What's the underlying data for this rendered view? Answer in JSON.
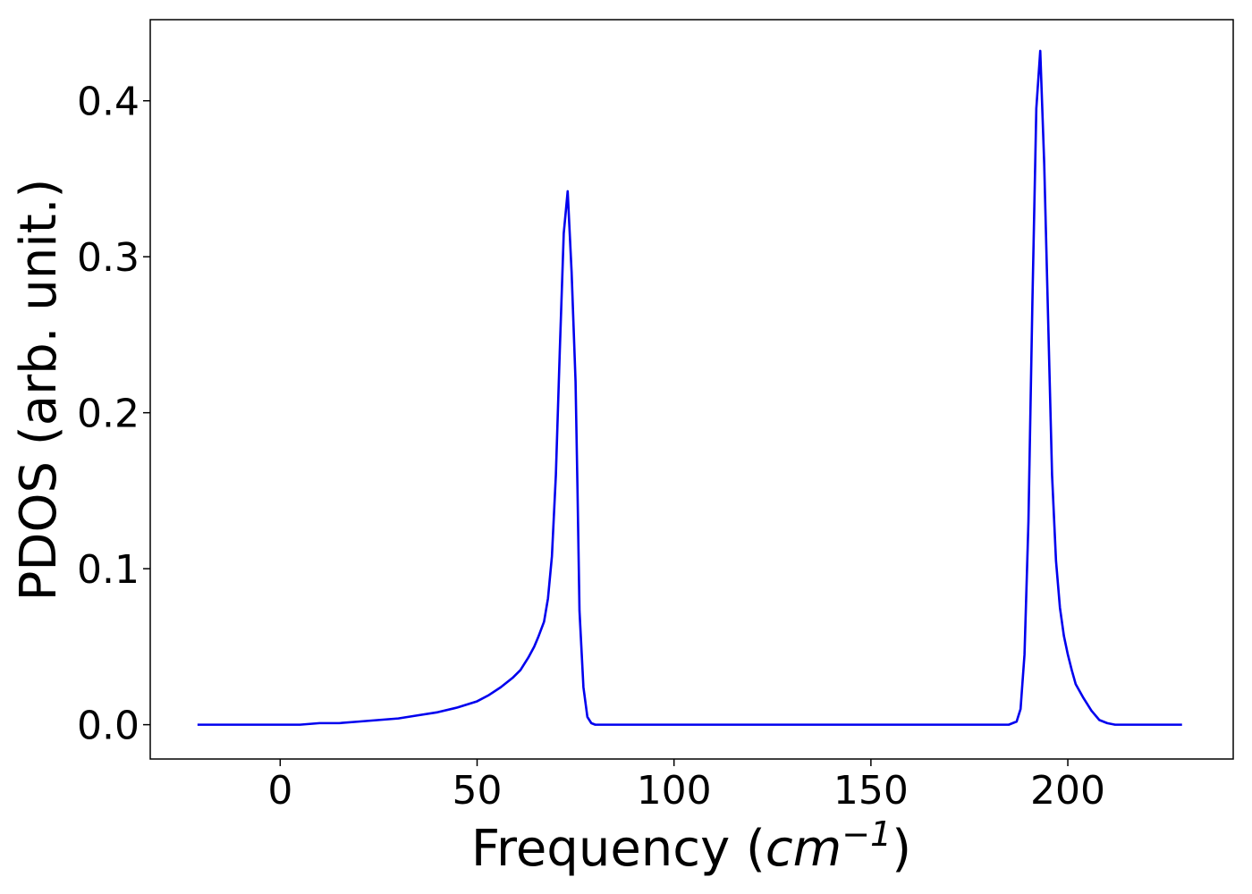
{
  "chart_data": {
    "type": "line",
    "title": "",
    "xlabel_prefix": "Frequency (",
    "xlabel_unit": "cm",
    "xlabel_exp": "−1",
    "xlabel_suffix": ")",
    "ylabel": "PDOS (arb. unit.)",
    "xlim": [
      -33,
      242
    ],
    "ylim": [
      -0.022,
      0.452
    ],
    "xticks": [
      0,
      50,
      100,
      150,
      200
    ],
    "xtick_labels": [
      "0",
      "50",
      "100",
      "150",
      "200"
    ],
    "yticks": [
      0.0,
      0.1,
      0.2,
      0.3,
      0.4
    ],
    "ytick_labels": [
      "0.0",
      "0.1",
      "0.2",
      "0.3",
      "0.4"
    ],
    "grid": false,
    "line_color": "#0000ee",
    "series": [
      {
        "x": [
          -21,
          -10,
          0,
          5,
          10,
          15,
          20,
          25,
          30,
          35,
          40,
          45,
          50,
          53,
          56,
          59,
          61,
          63,
          64.5,
          65.5,
          67,
          68,
          69,
          70,
          71,
          72,
          73,
          74,
          75,
          75.5,
          76,
          77,
          78,
          79,
          80,
          81,
          82,
          83,
          85,
          100,
          150,
          185,
          187,
          188,
          189,
          190,
          191,
          192,
          193,
          194,
          195,
          196,
          197,
          198,
          199,
          200,
          201,
          202,
          204,
          206,
          208,
          210,
          212,
          213,
          215,
          220,
          229
        ],
        "y": [
          0,
          0,
          0,
          0,
          0.001,
          0.001,
          0.002,
          0.003,
          0.004,
          0.006,
          0.008,
          0.011,
          0.015,
          0.019,
          0.024,
          0.03,
          0.035,
          0.043,
          0.05,
          0.056,
          0.066,
          0.081,
          0.108,
          0.16,
          0.24,
          0.315,
          0.342,
          0.29,
          0.22,
          0.15,
          0.073,
          0.024,
          0.005,
          0.001,
          0,
          0,
          0,
          0,
          0,
          0,
          0,
          0,
          0.002,
          0.01,
          0.045,
          0.13,
          0.27,
          0.395,
          0.432,
          0.36,
          0.26,
          0.16,
          0.105,
          0.075,
          0.057,
          0.045,
          0.035,
          0.026,
          0.017,
          0.009,
          0.003,
          0.001,
          0,
          0,
          0,
          0,
          0
        ]
      }
    ]
  }
}
